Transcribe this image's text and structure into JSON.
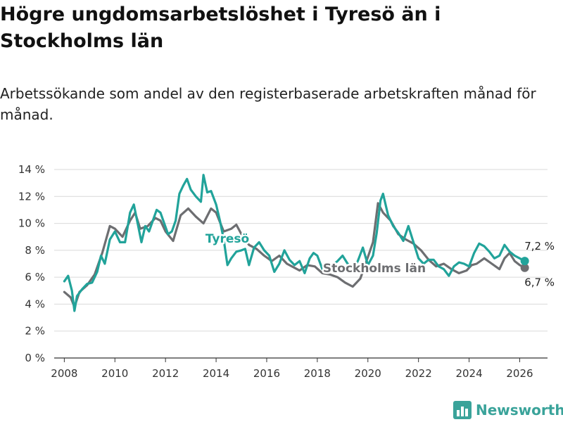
{
  "header": {
    "title": "Högre ungdomsarbetslöshet i Tyresö än i Stockholms län",
    "subtitle": "Arbetssökande som andel av den registerbaserade arbetskraften månad för månad."
  },
  "brand": {
    "name": "Newsworthy",
    "icon": "bar-chart-logo-icon",
    "color": "#3aa39a"
  },
  "chart_data": {
    "type": "line",
    "title": "Högre ungdomsarbetslöshet i Tyresö än i Stockholms län",
    "xlabel": "",
    "ylabel": "",
    "xlim": [
      2007.6,
      2027.1
    ],
    "ylim": [
      0,
      14
    ],
    "x_ticks": [
      2008,
      2010,
      2012,
      2014,
      2016,
      2018,
      2020,
      2022,
      2024,
      2026
    ],
    "x_tick_labels": [
      "2008",
      "2010",
      "2012",
      "2014",
      "2016",
      "2018",
      "2020",
      "2022",
      "2024",
      "2026"
    ],
    "y_ticks": [
      0,
      2,
      4,
      6,
      8,
      10,
      12,
      14
    ],
    "y_tick_labels": [
      "0 %",
      "2 %",
      "4 %",
      "6 %",
      "8 %",
      "10 %",
      "12 %",
      "14 %"
    ],
    "grid": true,
    "series": [
      {
        "name": "Stockholms län",
        "label": "Stockholms län",
        "color": "#6d6e71",
        "end_label": "6,7 %",
        "x": [
          2008.0,
          2008.25,
          2008.4,
          2008.6,
          2008.9,
          2009.2,
          2009.5,
          2009.8,
          2010.0,
          2010.3,
          2010.6,
          2010.8,
          2011.0,
          2011.3,
          2011.6,
          2011.8,
          2012.0,
          2012.3,
          2012.6,
          2012.9,
          2013.2,
          2013.5,
          2013.8,
          2014.0,
          2014.3,
          2014.6,
          2014.8,
          2015.0,
          2015.3,
          2015.6,
          2015.9,
          2016.2,
          2016.5,
          2016.8,
          2017.0,
          2017.3,
          2017.6,
          2017.9,
          2018.2,
          2018.5,
          2018.8,
          2019.1,
          2019.4,
          2019.7,
          2020.0,
          2020.2,
          2020.4,
          2020.6,
          2020.9,
          2021.2,
          2021.5,
          2021.8,
          2022.1,
          2022.4,
          2022.7,
          2023.0,
          2023.3,
          2023.6,
          2023.9,
          2024.1,
          2024.3,
          2024.6,
          2024.9,
          2025.2,
          2025.4,
          2025.6,
          2025.8,
          2026.0,
          2026.2
        ],
        "y": [
          4.9,
          4.5,
          3.8,
          4.9,
          5.4,
          6.2,
          7.8,
          9.8,
          9.6,
          9.0,
          10.2,
          10.8,
          9.6,
          9.8,
          10.4,
          10.2,
          9.4,
          8.7,
          10.6,
          11.1,
          10.5,
          10.0,
          11.1,
          10.8,
          9.4,
          9.6,
          9.9,
          9.2,
          8.4,
          8.1,
          7.6,
          7.2,
          7.6,
          7.0,
          6.8,
          6.5,
          6.9,
          6.8,
          6.3,
          6.2,
          6.0,
          5.6,
          5.3,
          5.9,
          7.5,
          8.6,
          11.5,
          10.8,
          10.2,
          9.2,
          8.8,
          8.5,
          8.0,
          7.3,
          6.8,
          7.0,
          6.6,
          6.3,
          6.5,
          6.9,
          7.0,
          7.4,
          7.0,
          6.6,
          7.4,
          7.8,
          7.2,
          6.9,
          6.7
        ]
      },
      {
        "name": "Tyresö",
        "label": "Tyresö",
        "color": "#21a39a",
        "end_label": "7,2 %",
        "x": [
          2008.0,
          2008.15,
          2008.3,
          2008.4,
          2008.5,
          2008.7,
          2008.9,
          2009.1,
          2009.3,
          2009.45,
          2009.6,
          2009.8,
          2010.0,
          2010.2,
          2010.4,
          2010.6,
          2010.75,
          2010.9,
          2011.05,
          2011.2,
          2011.35,
          2011.5,
          2011.65,
          2011.8,
          2011.95,
          2012.1,
          2012.25,
          2012.4,
          2012.55,
          2012.7,
          2012.85,
          2013.0,
          2013.2,
          2013.4,
          2013.5,
          2013.65,
          2013.8,
          2014.0,
          2014.15,
          2014.3,
          2014.45,
          2014.6,
          2014.8,
          2015.0,
          2015.15,
          2015.3,
          2015.5,
          2015.7,
          2015.9,
          2016.1,
          2016.3,
          2016.5,
          2016.7,
          2016.9,
          2017.1,
          2017.3,
          2017.5,
          2017.7,
          2017.85,
          2018.0,
          2018.2,
          2018.4,
          2018.6,
          2018.8,
          2019.0,
          2019.2,
          2019.4,
          2019.6,
          2019.8,
          2020.0,
          2020.2,
          2020.35,
          2020.5,
          2020.6,
          2020.8,
          2021.0,
          2021.2,
          2021.4,
          2021.6,
          2021.8,
          2022.0,
          2022.2,
          2022.4,
          2022.6,
          2022.8,
          2023.0,
          2023.2,
          2023.4,
          2023.6,
          2023.8,
          2024.0,
          2024.2,
          2024.4,
          2024.6,
          2024.8,
          2025.0,
          2025.2,
          2025.4,
          2025.6,
          2025.8,
          2026.0,
          2026.2
        ],
        "y": [
          5.7,
          6.1,
          5.0,
          3.5,
          4.6,
          5.1,
          5.5,
          5.6,
          6.4,
          7.6,
          7.0,
          8.8,
          9.4,
          8.6,
          8.6,
          10.8,
          11.4,
          10.0,
          8.6,
          9.8,
          9.4,
          10.2,
          11.0,
          10.8,
          10.0,
          9.2,
          9.4,
          10.2,
          12.2,
          12.8,
          13.3,
          12.5,
          12.0,
          11.6,
          13.6,
          12.3,
          12.4,
          11.4,
          10.2,
          8.8,
          6.9,
          7.4,
          7.9,
          8.0,
          8.1,
          6.9,
          8.2,
          8.6,
          8.0,
          7.6,
          6.4,
          7.0,
          8.0,
          7.3,
          6.9,
          7.2,
          6.3,
          7.4,
          7.8,
          7.6,
          6.6,
          6.8,
          6.9,
          7.2,
          7.6,
          7.0,
          6.6,
          7.2,
          8.2,
          6.9,
          7.6,
          9.3,
          11.7,
          12.2,
          10.6,
          9.8,
          9.3,
          8.7,
          9.8,
          8.6,
          7.4,
          7.0,
          7.3,
          7.3,
          6.8,
          6.6,
          6.1,
          6.8,
          7.1,
          7.0,
          6.8,
          7.8,
          8.5,
          8.3,
          7.9,
          7.4,
          7.6,
          8.4,
          7.9,
          7.6,
          7.4,
          7.2
        ]
      }
    ]
  }
}
